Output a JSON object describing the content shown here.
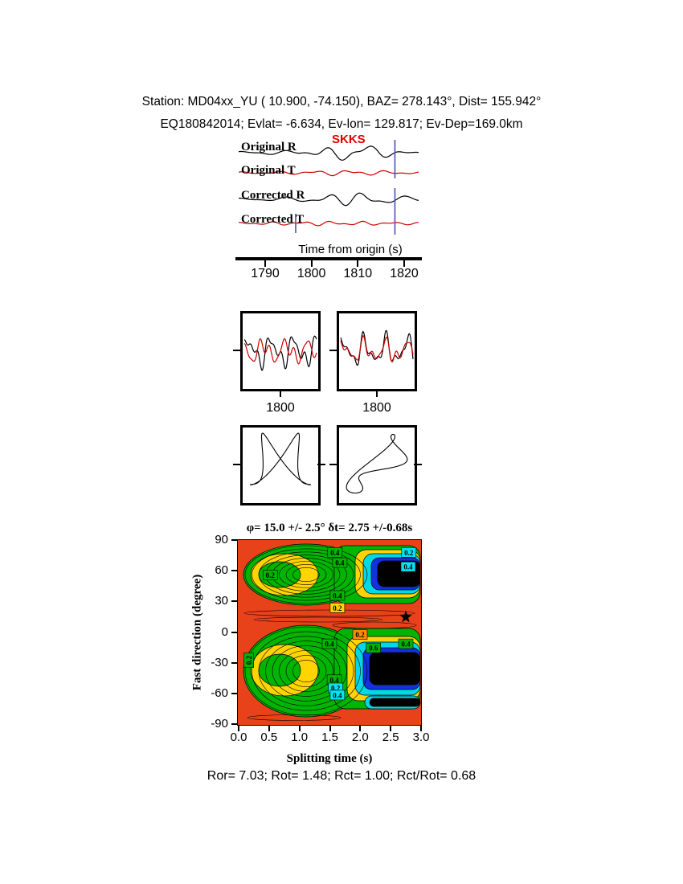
{
  "colors": {
    "background": "#ffffff",
    "black": "#000000",
    "red_trace": "#cc0000",
    "phase_label": "#e00000",
    "window_marker": "#5050b0",
    "field_red": "#e8421a",
    "green": "#00b400",
    "yellow": "#ffd400",
    "orange": "#ff8c00",
    "cyan": "#00d8e8",
    "blue": "#1430e0",
    "chip_cyan": "#00e4f4"
  },
  "header": {
    "line1": "Station: MD04xx_YU (  10.900,  -74.150), BAZ=  278.143°, Dist=  155.942°",
    "line2": "EQ180842014; Evlat=  -6.634, Ev-lon= 129.817; Ev-Dep=169.0km"
  },
  "seismograms": {
    "phase_label": "SKKS",
    "trace_labels": [
      "Original R",
      "Original T",
      "Corrected R",
      "Corrected T"
    ],
    "axis_label": "Time from origin (s)",
    "x_ticks": [
      "1790",
      "1800",
      "1810",
      "1820"
    ]
  },
  "windows": {
    "labels": [
      "1800",
      "1800"
    ]
  },
  "splitting": {
    "title": "φ= 15.0 +/- 2.5° δt= 2.75 +/-0.68s",
    "xlabel": "Splitting time (s)",
    "ylabel": "Fast direction (degree)",
    "x_ticks": [
      "0.0",
      "0.5",
      "1.0",
      "1.5",
      "2.0",
      "2.5",
      "3.0"
    ],
    "y_ticks": [
      "90",
      "60",
      "30",
      "0",
      "-30",
      "-60",
      "-90"
    ]
  },
  "footer": {
    "text": "Ror= 7.03; Rot= 1.48; Rct= 1.00; Rct/Rot= 0.68"
  },
  "chart_data": [
    {
      "type": "line",
      "name": "seismogram-panel",
      "x_axis": {
        "label": "Time from origin (s)",
        "ticks": [
          1790,
          1800,
          1810,
          1820
        ],
        "range": [
          1785,
          1825
        ]
      },
      "phase_annotation": {
        "text": "SKKS",
        "color": "#e00000"
      },
      "window_marker_time": 1818,
      "series": [
        {
          "name": "Original R",
          "color": "#000000",
          "amp": 12,
          "env": {
            "c": 0.62,
            "w": 0.25,
            "floor": 0.18
          },
          "components": [
            [
              0.5,
              4.5,
              0.3
            ],
            [
              0.3,
              8.0,
              1.5
            ],
            [
              0.2,
              2.6,
              2.2
            ]
          ]
        },
        {
          "name": "Original T",
          "color": "#cc0000",
          "amp": 5,
          "env": {
            "c": 0.6,
            "w": 0.3,
            "floor": 0.3
          },
          "components": [
            [
              0.45,
              5.0,
              1.0
            ],
            [
              0.3,
              9.0,
              0.4
            ]
          ]
        },
        {
          "name": "Corrected R",
          "color": "#000000",
          "amp": 13,
          "env": {
            "c": 0.63,
            "w": 0.22,
            "floor": 0.18
          },
          "components": [
            [
              0.5,
              4.5,
              0.5
            ],
            [
              0.3,
              7.5,
              1.8
            ],
            [
              0.2,
              3.0,
              2.8
            ]
          ]
        },
        {
          "name": "Corrected T",
          "color": "#cc0000",
          "amp": 5,
          "env": {
            "c": 0.5,
            "w": 0.4,
            "floor": 0.4
          },
          "components": [
            [
              0.35,
              6.0,
              0.9
            ],
            [
              0.25,
              10.0,
              2.0
            ]
          ]
        }
      ]
    },
    {
      "type": "line",
      "name": "window-comparison-left",
      "x_tick": 1800,
      "series": [
        {
          "name": "R",
          "color": "#000000",
          "amp": 26,
          "env": {
            "c": 0.5,
            "w": 9,
            "floor": 1
          },
          "components": [
            [
              0.5,
              3.2,
              0.3
            ],
            [
              0.3,
              6.1,
              1.4
            ],
            [
              0.2,
              9.3,
              2.6
            ]
          ]
        },
        {
          "name": "T",
          "color": "#cc0000",
          "amp": 21,
          "env": {
            "c": 0.5,
            "w": 9,
            "floor": 1
          },
          "components": [
            [
              0.45,
              3.2,
              2.6
            ],
            [
              0.3,
              6.1,
              0.1
            ],
            [
              0.2,
              8.7,
              1.9
            ]
          ]
        }
      ]
    },
    {
      "type": "line",
      "name": "window-comparison-right",
      "x_tick": 1800,
      "series": [
        {
          "name": "R",
          "color": "#000000",
          "amp": 26,
          "env": {
            "c": 0.5,
            "w": 9,
            "floor": 1
          },
          "components": [
            [
              0.5,
              3.4,
              0.8
            ],
            [
              0.3,
              6.3,
              1.9
            ],
            [
              0.2,
              9.1,
              3.1
            ]
          ]
        },
        {
          "name": "T",
          "color": "#cc0000",
          "amp": 21,
          "env": {
            "c": 0.5,
            "w": 9,
            "floor": 1
          },
          "components": [
            [
              0.45,
              3.4,
              0.9
            ],
            [
              0.3,
              6.3,
              2.1
            ],
            [
              0.2,
              8.9,
              3.0
            ]
          ]
        }
      ]
    },
    {
      "type": "scatter",
      "name": "particle-motion-left",
      "curve": {
        "x": [
          [
            0.85,
            1,
            0.1
          ],
          [
            0.25,
            3,
            1.2
          ]
        ],
        "y": [
          [
            0.8,
            2,
            0.9
          ],
          [
            0.2,
            4,
            0.3
          ]
        ]
      }
    },
    {
      "type": "scatter",
      "name": "particle-motion-right",
      "curve": {
        "x": [
          [
            0.8,
            1,
            0.0
          ],
          [
            0.3,
            3,
            1.0
          ]
        ],
        "y": [
          [
            0.8,
            1,
            0.45
          ],
          [
            0.25,
            2,
            0.6
          ]
        ]
      }
    },
    {
      "type": "contour",
      "name": "splitting-error-surface",
      "title": "φ= 15.0 +/- 2.5° δt= 2.75 +/-0.68s",
      "xlabel": "Splitting time (s)",
      "ylabel": "Fast direction (degree)",
      "xlim": [
        0.0,
        3.0
      ],
      "ylim": [
        -90,
        90
      ],
      "x_ticks": [
        0.0,
        0.5,
        1.0,
        1.5,
        2.0,
        2.5,
        3.0
      ],
      "y_ticks": [
        90,
        60,
        30,
        0,
        -30,
        -60,
        -90
      ],
      "best_fit": {
        "phi_deg": 15.0,
        "phi_err_deg": 2.5,
        "dt_s": 2.75,
        "dt_err_s": 0.68
      },
      "star": {
        "dt_s": 2.75,
        "phi_deg": 15.0
      },
      "contour_label_values": [
        0.2,
        0.4,
        0.6
      ],
      "labels": [
        {
          "v": "0.2",
          "t": 0.53,
          "phi": 56,
          "bg": "green"
        },
        {
          "v": "0.4",
          "t": 1.67,
          "phi": 68,
          "bg": "green"
        },
        {
          "v": "0.4",
          "t": 1.59,
          "phi": 78,
          "bg": "green"
        },
        {
          "v": "0.2",
          "t": 2.8,
          "phi": 78,
          "bg": "cyan"
        },
        {
          "v": "0.4",
          "t": 2.79,
          "phi": 64,
          "bg": "cyan"
        },
        {
          "v": "0.4",
          "t": 1.63,
          "phi": 36,
          "bg": "green"
        },
        {
          "v": "0.2",
          "t": 1.63,
          "phi": 24,
          "bg": "yellow"
        },
        {
          "v": "0.2",
          "t": 2.0,
          "phi": -2,
          "bg": "orange"
        },
        {
          "v": "0.4",
          "t": 1.5,
          "phi": -11,
          "bg": "green"
        },
        {
          "v": "0.6",
          "t": 2.22,
          "phi": -15,
          "bg": "green"
        },
        {
          "v": "0.4",
          "t": 2.75,
          "phi": -11,
          "bg": "green"
        },
        {
          "v": "0.2",
          "t": 0.18,
          "phi": -27,
          "bg": "green",
          "rot": -90
        },
        {
          "v": "0.4",
          "t": 1.58,
          "phi": -46,
          "bg": "green"
        },
        {
          "v": "0.2",
          "t": 1.6,
          "phi": -54,
          "bg": "cyan"
        },
        {
          "v": "0.4",
          "t": 1.63,
          "phi": -61,
          "bg": "cyan"
        }
      ]
    }
  ]
}
